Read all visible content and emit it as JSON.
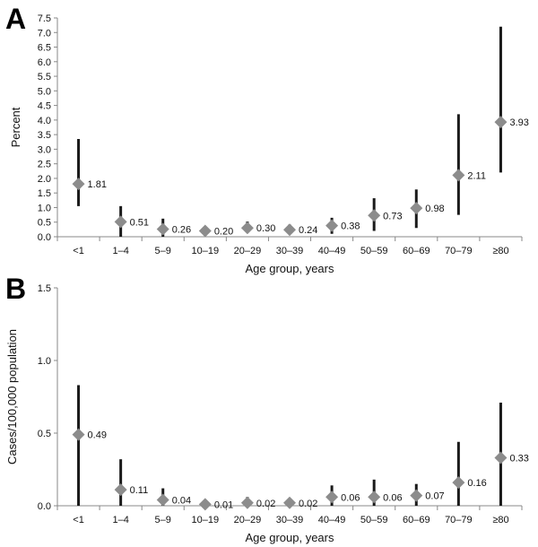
{
  "chart_data": [
    {
      "type": "scatter",
      "panel_label": "A",
      "xlabel": "Age group, years",
      "ylabel": "Percent",
      "ylim": [
        0,
        7.5
      ],
      "yticks": [
        "0.0",
        "0.5",
        "1.0",
        "1.5",
        "2.0",
        "2.5",
        "3.0",
        "3.5",
        "4.0",
        "4.5",
        "5.0",
        "5.5",
        "6.0",
        "6.5",
        "7.0",
        "7.5"
      ],
      "ytick_values": [
        0,
        0.5,
        1.0,
        1.5,
        2.0,
        2.5,
        3.0,
        3.5,
        4.0,
        4.5,
        5.0,
        5.5,
        6.0,
        6.5,
        7.0,
        7.5
      ],
      "categories": [
        "<1",
        "1–4",
        "5–9",
        "10–19",
        "20–29",
        "30–39",
        "40–49",
        "50–59",
        "60–69",
        "70–79",
        "≥80"
      ],
      "values": [
        1.81,
        0.51,
        0.26,
        0.2,
        0.3,
        0.24,
        0.38,
        0.73,
        0.98,
        2.11,
        3.93
      ],
      "value_labels": [
        "1.81",
        "0.51",
        "0.26",
        "0.20",
        "0.30",
        "0.24",
        "0.38",
        "0.73",
        "0.98",
        "2.11",
        "3.93"
      ],
      "ci_lower": [
        1.05,
        0.0,
        0.0,
        0.1,
        0.15,
        0.1,
        0.1,
        0.2,
        0.3,
        0.75,
        2.2
      ],
      "ci_upper": [
        3.35,
        1.05,
        0.62,
        0.32,
        0.52,
        0.42,
        0.65,
        1.32,
        1.62,
        4.2,
        7.2
      ],
      "grid": false,
      "marker_color": "#8c8c8c",
      "errorbar_color": "#1a1a1a"
    },
    {
      "type": "scatter",
      "panel_label": "B",
      "xlabel": "Age group, years",
      "ylabel": "Cases/100,000 population",
      "ylim": [
        0,
        1.5
      ],
      "yticks": [
        "0.0",
        "0.5",
        "1.0",
        "1.5"
      ],
      "ytick_values": [
        0,
        0.5,
        1.0,
        1.5
      ],
      "categories": [
        "<1",
        "1–4",
        "5–9",
        "10–19",
        "20–29",
        "30–39",
        "40–49",
        "50–59",
        "60–69",
        "70–79",
        "≥80"
      ],
      "values": [
        0.49,
        0.11,
        0.04,
        0.01,
        0.02,
        0.02,
        0.06,
        0.06,
        0.07,
        0.16,
        0.33
      ],
      "value_labels": [
        "0.49",
        "0.11",
        "0.04",
        "0.01",
        "0.02",
        "0.02",
        "0.06",
        "0.06",
        "0.07",
        "0.16",
        "0.33"
      ],
      "ci_lower": [
        0.0,
        0.0,
        0.0,
        0.0,
        0.0,
        0.0,
        0.0,
        0.0,
        0.0,
        0.0,
        0.0
      ],
      "ci_upper": [
        0.83,
        0.32,
        0.12,
        0.02,
        0.06,
        0.04,
        0.14,
        0.18,
        0.15,
        0.44,
        0.71
      ],
      "grid": false,
      "marker_color": "#8c8c8c",
      "errorbar_color": "#1a1a1a"
    }
  ]
}
